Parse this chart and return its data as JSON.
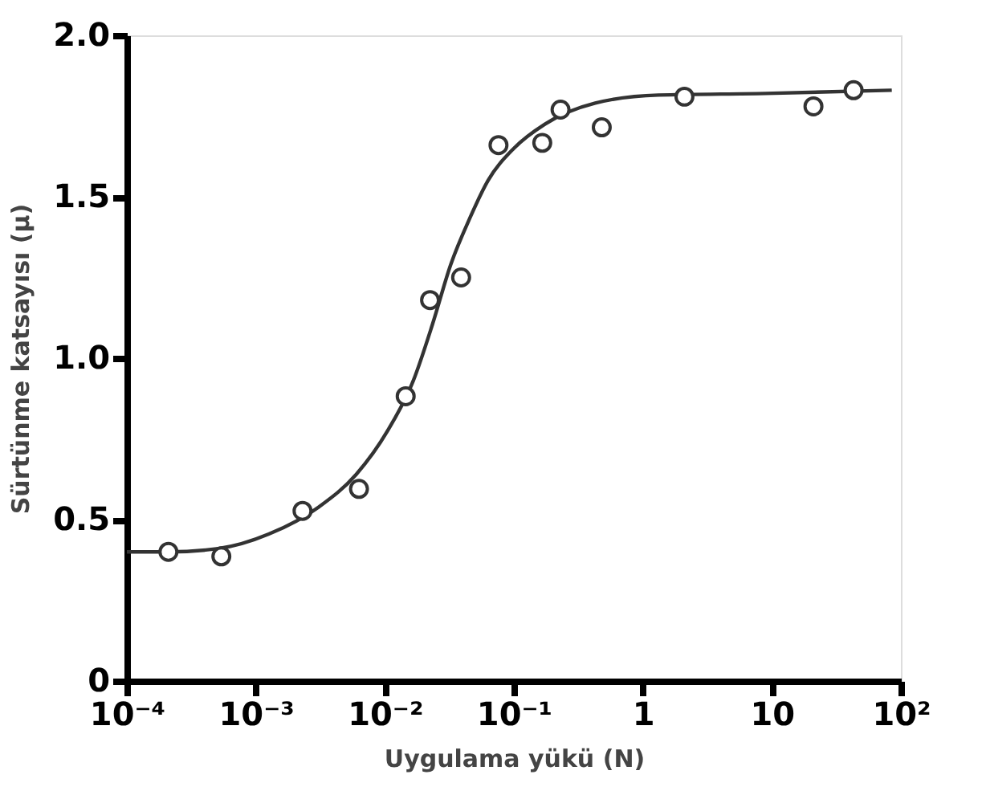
{
  "chart_data": {
    "type": "scatter",
    "xlabel": "Uygulama yükü (N)",
    "ylabel": "Sürtünme katsayısı (μ)",
    "log": "x",
    "grid": false,
    "xlim": [
      0.0001,
      100
    ],
    "ylim": [
      0,
      2
    ],
    "xticks": [
      {
        "value": 0.0001,
        "label": "10⁻⁴"
      },
      {
        "value": 0.001,
        "label": "10⁻³"
      },
      {
        "value": 0.01,
        "label": "10⁻²"
      },
      {
        "value": 0.1,
        "label": "10⁻¹"
      },
      1,
      10,
      {
        "value": 100,
        "label": "10²"
      }
    ],
    "yticks": [
      0,
      0.5,
      {
        "value": 1,
        "label": "1.0"
      },
      1.5,
      {
        "value": 2,
        "label": "2.0"
      }
    ],
    "series": [
      {
        "type": "line",
        "marker": "none",
        "line_style": "solid",
        "color": "#333333",
        "x": [
          0.0001,
          0.00021,
          0.00051,
          0.00126,
          0.0031,
          0.006,
          0.0105,
          0.0166,
          0.0234,
          0.0324,
          0.0457,
          0.063,
          0.1,
          0.174,
          0.427,
          1.32,
          8.9,
          85
        ],
        "values": [
          0.4,
          0.4,
          0.41,
          0.455,
          0.54,
          0.64,
          0.775,
          0.93,
          1.105,
          1.29,
          1.435,
          1.55,
          1.65,
          1.725,
          1.79,
          1.815,
          1.82,
          1.83
        ]
      },
      {
        "type": "scatter",
        "marker": "circle",
        "color": "#333333",
        "x": [
          0.00021,
          0.00054,
          0.0023,
          0.0063,
          0.0145,
          0.0224,
          0.039,
          0.076,
          0.166,
          0.23,
          0.48,
          2.1,
          21,
          43
        ],
        "values": [
          0.4,
          0.386,
          0.527,
          0.595,
          0.882,
          1.18,
          1.25,
          1.66,
          1.667,
          1.77,
          1.715,
          1.81,
          1.78,
          1.83
        ]
      }
    ]
  }
}
